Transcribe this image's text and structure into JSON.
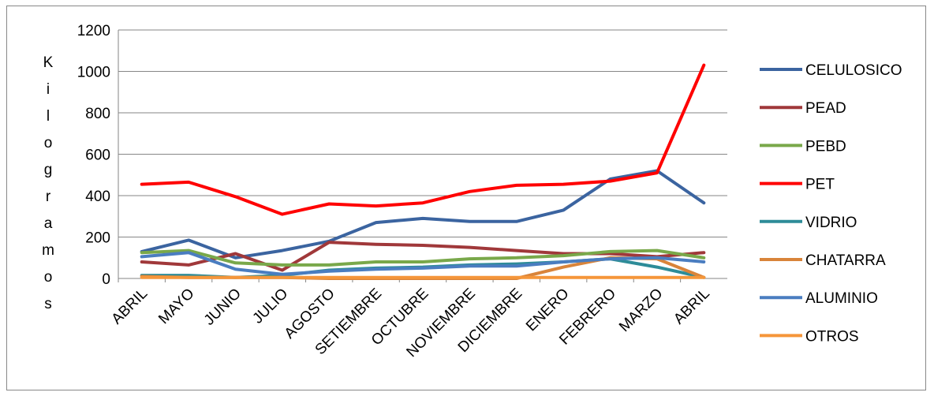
{
  "chart_data": {
    "type": "line",
    "title": "",
    "xlabel": "",
    "ylabel": "Kilogramos",
    "ylim": [
      0,
      1200
    ],
    "yticks": [
      0,
      200,
      400,
      600,
      800,
      1000,
      1200
    ],
    "grid": true,
    "legend_position": "right",
    "categories": [
      "ABRIL",
      "MAYO",
      "JUNIO",
      "JULIO",
      "AGOSTO",
      "SETIEMBRE",
      "OCTUBRE",
      "NOVIEMBRE",
      "DICIEMBRE",
      "ENERO",
      "FEBRERO",
      "MARZO",
      "ABRIL"
    ],
    "series": [
      {
        "name": "CELULOSICO",
        "color": "#3B64A0",
        "values": [
          130,
          185,
          100,
          135,
          180,
          270,
          290,
          275,
          275,
          330,
          480,
          520,
          365
        ]
      },
      {
        "name": "PEAD",
        "color": "#A0383A",
        "values": [
          80,
          65,
          120,
          40,
          175,
          165,
          160,
          150,
          135,
          120,
          120,
          105,
          125
        ]
      },
      {
        "name": "PEBD",
        "color": "#79A84A",
        "values": [
          125,
          135,
          75,
          65,
          65,
          80,
          80,
          95,
          100,
          110,
          130,
          135,
          100
        ]
      },
      {
        "name": "PET",
        "color": "#FF0000",
        "values": [
          455,
          465,
          395,
          310,
          360,
          350,
          365,
          420,
          450,
          455,
          470,
          510,
          1030
        ]
      },
      {
        "name": "VIDRIO",
        "color": "#2E8C98",
        "values": [
          15,
          15,
          5,
          15,
          40,
          50,
          55,
          65,
          70,
          80,
          95,
          55,
          5
        ]
      },
      {
        "name": "CHATARRA",
        "color": "#D9843A",
        "values": [
          10,
          5,
          5,
          5,
          0,
          0,
          0,
          0,
          0,
          55,
          100,
          95,
          5
        ]
      },
      {
        "name": "ALUMINIO",
        "color": "#4A7DC0",
        "values": [
          105,
          125,
          45,
          20,
          35,
          45,
          50,
          60,
          60,
          80,
          95,
          100,
          80
        ]
      },
      {
        "name": "OTROS",
        "color": "#F5963A",
        "values": [
          5,
          5,
          5,
          5,
          5,
          5,
          5,
          5,
          5,
          5,
          5,
          5,
          5
        ]
      }
    ]
  }
}
